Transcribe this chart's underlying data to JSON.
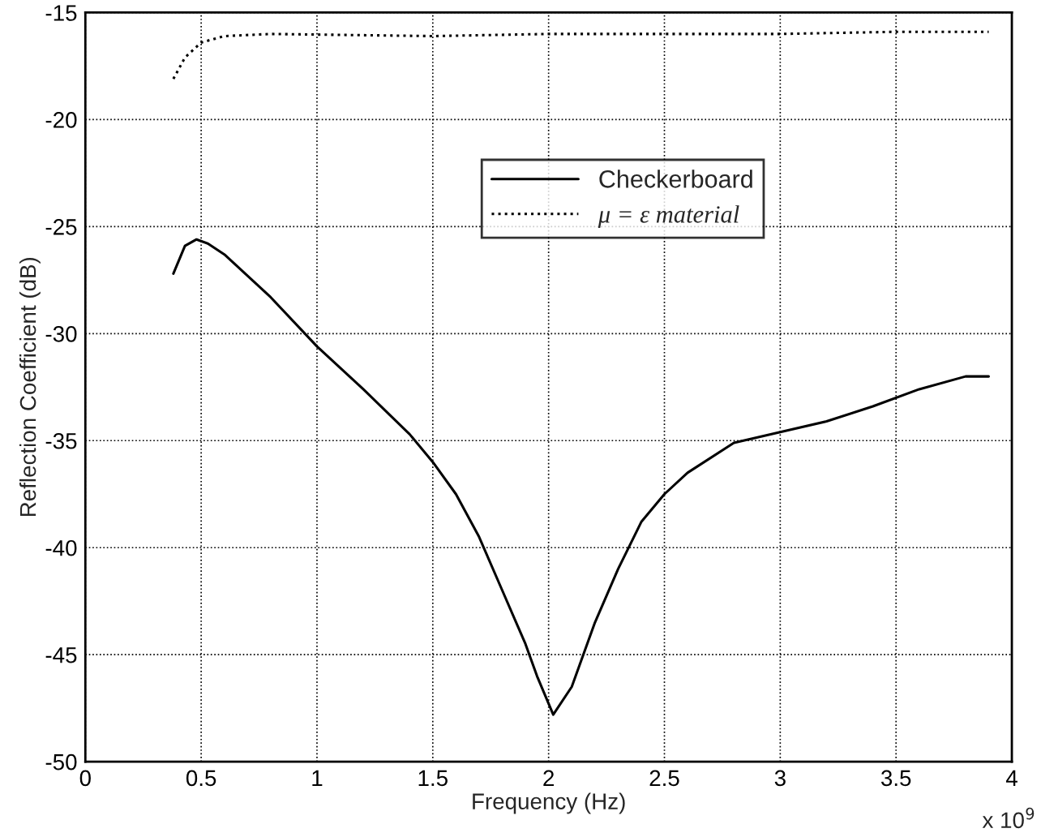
{
  "chart_data": {
    "type": "line",
    "xlabel": "Frequency (Hz)",
    "ylabel": "Reflection Coefficient (dB)",
    "annotations": [
      "x 10$^{9}$"
    ],
    "xlim": [
      0,
      4
    ],
    "xticks": [
      0,
      0.5,
      1,
      1.5,
      2,
      2.5,
      3,
      3.5,
      4
    ],
    "ylim": [
      -50,
      -15
    ],
    "yticks": [
      -50,
      -45,
      -40,
      -35,
      -30,
      -25,
      -20,
      -15
    ],
    "grid": true,
    "legend": "top",
    "marker": "none",
    "series": [
      {
        "name": "Checkerboard",
        "color": "#000000",
        "line_style": "solid",
        "x": [
          0.38,
          0.43,
          0.48,
          0.53,
          0.6,
          0.8,
          1.0,
          1.2,
          1.4,
          1.5,
          1.6,
          1.7,
          1.8,
          1.9,
          1.95,
          2.02,
          2.1,
          2.2,
          2.3,
          2.4,
          2.5,
          2.6,
          2.8,
          3.0,
          3.2,
          3.4,
          3.6,
          3.8,
          3.9
        ],
        "values": [
          -27.2,
          -25.9,
          -25.6,
          -25.8,
          -26.3,
          -28.3,
          -30.6,
          -32.6,
          -34.7,
          -36.0,
          -37.5,
          -39.5,
          -42.0,
          -44.5,
          -46.0,
          -47.8,
          -46.5,
          -43.5,
          -41.0,
          -38.8,
          -37.5,
          -36.5,
          -35.1,
          -34.6,
          -34.1,
          -33.4,
          -32.6,
          -32.0,
          -32.0
        ]
      },
      {
        "name": "μ = ε material",
        "color": "#000000",
        "line_style": "dotted",
        "x": [
          0.38,
          0.43,
          0.5,
          0.6,
          0.8,
          1.5,
          2.0,
          3.0,
          3.5,
          3.9
        ],
        "values": [
          -18.1,
          -17.1,
          -16.4,
          -16.1,
          -16.0,
          -16.1,
          -16.0,
          -16.0,
          -15.9,
          -15.9
        ]
      }
    ]
  }
}
